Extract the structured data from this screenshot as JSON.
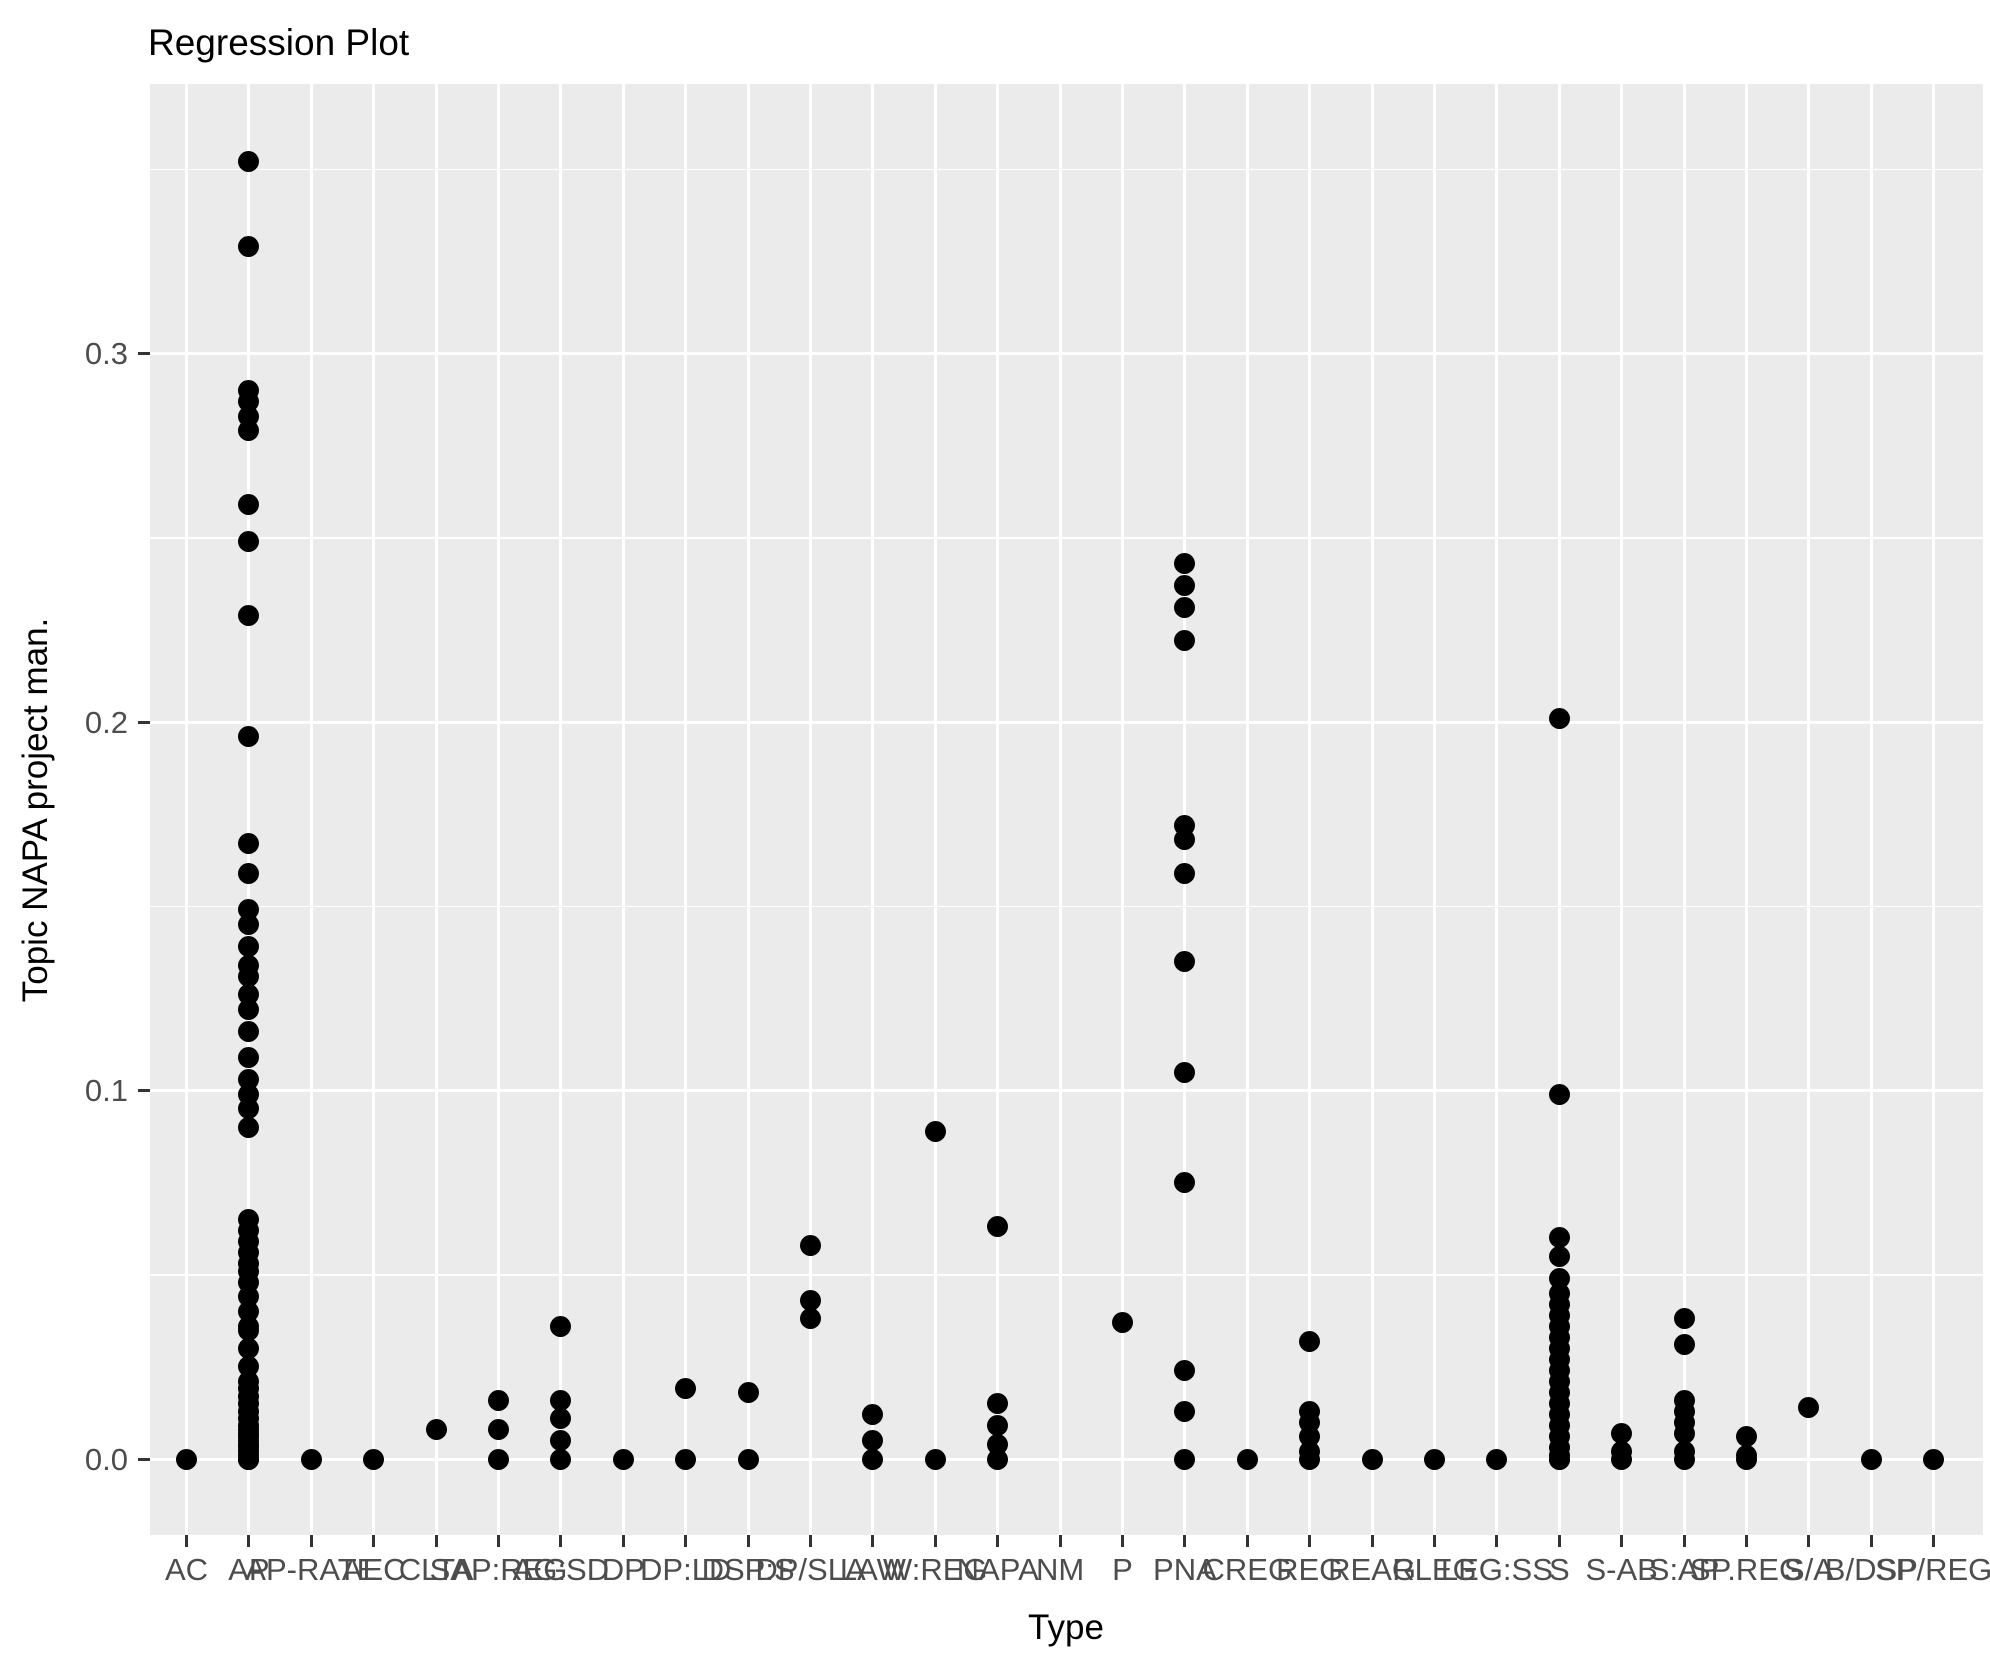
{
  "title": "Regression Plot",
  "colors": {
    "figure_bg": "#ffffff",
    "panel_bg": "#ebebeb",
    "grid": "#ffffff",
    "point": "#000000",
    "tick_label": "#4d4d4d",
    "tick_mark": "#333333",
    "text": "#000000"
  },
  "chart_data": {
    "type": "scatter",
    "subtype": "strip-plot-categorical",
    "title": "Regression Plot",
    "xlabel": "Type",
    "ylabel": "Topic NAPA project man.",
    "grid": true,
    "legend_position": "none",
    "y_tick_labels": [
      "0.0",
      "0.1",
      "0.2",
      "0.3"
    ],
    "y_ticks": [
      0.0,
      0.1,
      0.2,
      0.3
    ],
    "y_minor_ticks": [
      0.05,
      0.15,
      0.25,
      0.35
    ],
    "ylim": [
      -0.0206,
      0.3732
    ],
    "categories": [
      "AC",
      "AP",
      "AP-RATE",
      "AEC",
      "CLTA",
      "SAP:REG",
      "AG:SD",
      "DP",
      "DP:LD",
      "DSP:S",
      "DP/SLA",
      "LAW",
      "W:REG",
      "NAPA",
      "NM",
      "P",
      "PNA",
      "CREG",
      "REG",
      "REAG",
      "RLEG",
      "LEG:SS",
      "S",
      "S-AB",
      "S:AP",
      "SP.REG",
      "S/A",
      "B/DSP",
      "SP/REG"
    ],
    "values_by_category": [
      [
        0.0
      ],
      [
        0.352,
        0.329,
        0.29,
        0.287,
        0.283,
        0.279,
        0.259,
        0.249,
        0.229,
        0.196,
        0.167,
        0.159,
        0.149,
        0.145,
        0.139,
        0.134,
        0.131,
        0.126,
        0.122,
        0.116,
        0.109,
        0.103,
        0.099,
        0.095,
        0.09,
        0.065,
        0.062,
        0.059,
        0.056,
        0.053,
        0.051,
        0.048,
        0.044,
        0.04,
        0.036,
        0.035,
        0.03,
        0.025,
        0.021,
        0.019,
        0.017,
        0.015,
        0.013,
        0.011,
        0.009,
        0.008,
        0.007,
        0.006,
        0.005,
        0.004,
        0.003,
        0.002,
        0.001,
        0.0,
        0.0,
        0.0
      ],
      [
        0.0
      ],
      [
        0.0
      ],
      [
        0.008
      ],
      [
        0.016,
        0.008,
        0.0
      ],
      [
        0.036,
        0.016,
        0.011,
        0.005,
        0.0
      ],
      [
        0.0
      ],
      [
        0.019,
        0.0
      ],
      [
        0.018,
        0.0
      ],
      [
        0.058,
        0.043,
        0.038
      ],
      [
        0.012,
        0.005,
        0.0
      ],
      [
        0.089,
        0.0
      ],
      [
        0.063,
        0.015,
        0.009,
        0.004,
        0.0
      ],
      [],
      [
        0.037
      ],
      [
        0.243,
        0.237,
        0.231,
        0.222,
        0.172,
        0.168,
        0.159,
        0.135,
        0.105,
        0.075,
        0.024,
        0.013,
        0.0
      ],
      [
        0.0
      ],
      [
        0.032,
        0.013,
        0.01,
        0.006,
        0.002,
        0.0
      ],
      [
        0.0
      ],
      [
        0.0
      ],
      [
        0.0
      ],
      [
        0.201,
        0.099,
        0.06,
        0.055,
        0.049,
        0.045,
        0.042,
        0.039,
        0.036,
        0.033,
        0.03,
        0.027,
        0.024,
        0.021,
        0.018,
        0.015,
        0.012,
        0.009,
        0.006,
        0.003,
        0.001,
        0.0,
        0.0
      ],
      [
        0.007,
        0.002,
        0.0
      ],
      [
        0.038,
        0.031,
        0.016,
        0.013,
        0.01,
        0.007,
        0.002,
        0.0
      ],
      [
        0.006,
        0.001,
        0.0
      ],
      [
        0.014
      ],
      [
        0.0
      ],
      [
        0.0
      ]
    ]
  }
}
